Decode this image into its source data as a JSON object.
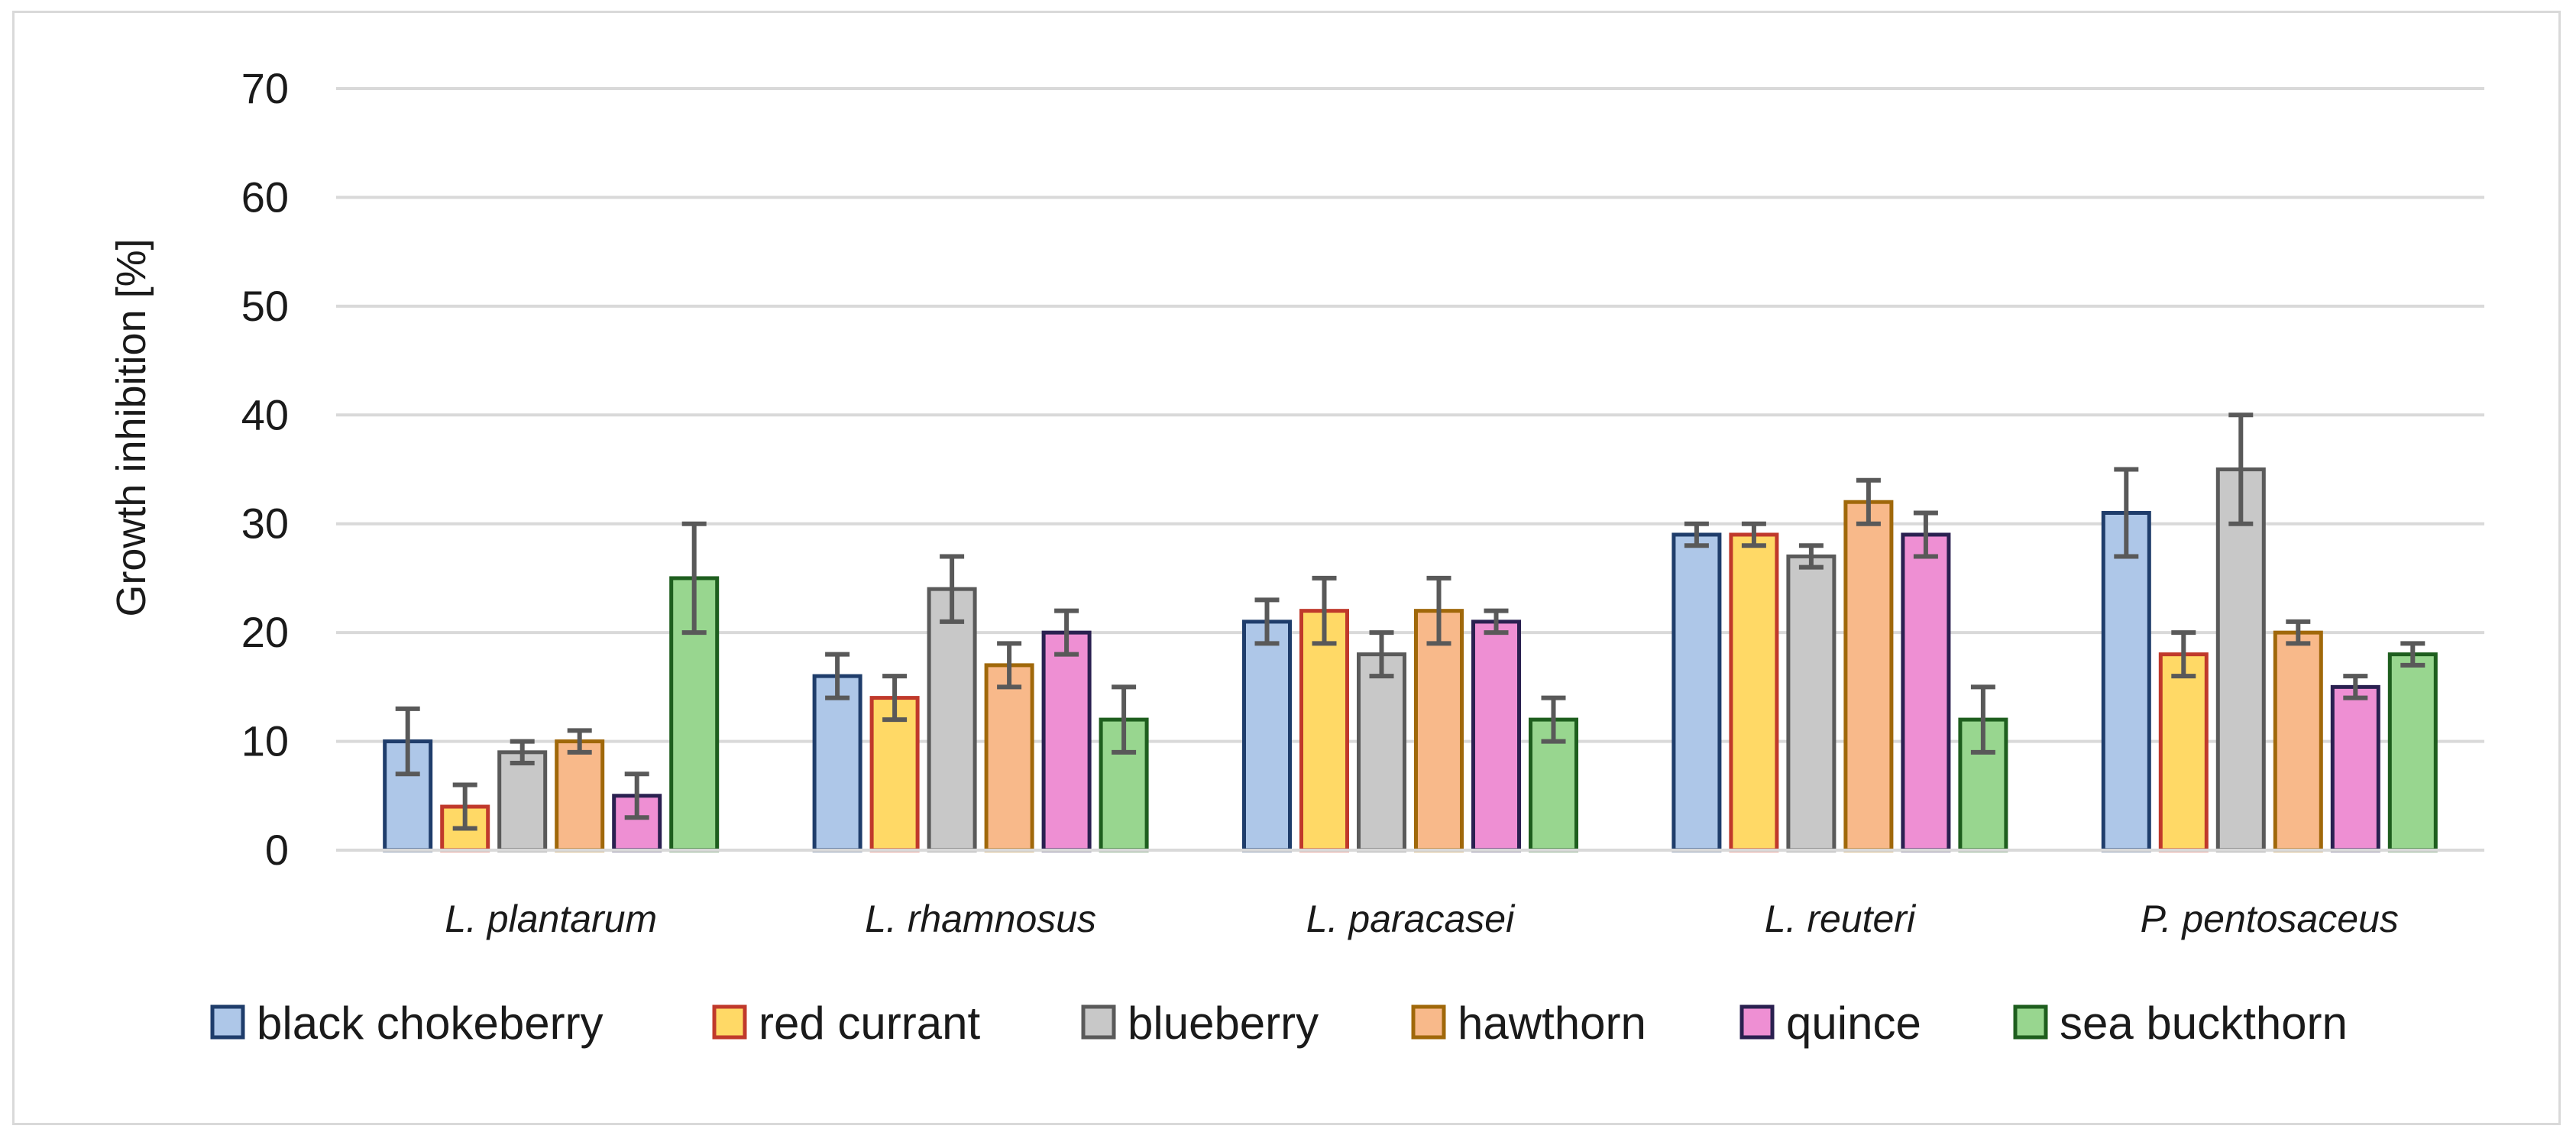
{
  "chart_data": {
    "type": "bar",
    "title": "",
    "xlabel": "",
    "ylabel": "Growth inhibition [%]",
    "ylim": [
      0,
      70
    ],
    "yticks": [
      0,
      10,
      20,
      30,
      40,
      50,
      60,
      70
    ],
    "grid": true,
    "legend_position": "bottom",
    "categories": [
      "L. plantarum",
      "L. rhamnosus",
      "L. paracasei",
      "L. reuteri",
      "P. pentosaceus"
    ],
    "series": [
      {
        "name": "black chokeberry",
        "fill": "#aec7e8",
        "stroke": "#1f3d6b",
        "values": [
          10,
          16,
          21,
          29,
          31
        ],
        "errors": [
          3,
          2,
          2,
          1,
          4
        ]
      },
      {
        "name": "red currant",
        "fill": "#ffd966",
        "stroke": "#c0392b",
        "values": [
          4,
          14,
          22,
          29,
          18
        ],
        "errors": [
          2,
          2,
          3,
          1,
          2
        ]
      },
      {
        "name": "blueberry",
        "fill": "#c8c8c8",
        "stroke": "#5a5a5a",
        "values": [
          9,
          24,
          18,
          27,
          35
        ],
        "errors": [
          1,
          3,
          2,
          1,
          5
        ]
      },
      {
        "name": "hawthorn",
        "fill": "#f8b98a",
        "stroke": "#a0680a",
        "values": [
          10,
          17,
          22,
          32,
          20
        ],
        "errors": [
          1,
          2,
          3,
          2,
          1
        ]
      },
      {
        "name": "quince",
        "fill": "#ee8fd3",
        "stroke": "#2a2050",
        "values": [
          5,
          20,
          21,
          29,
          15
        ],
        "errors": [
          2,
          2,
          1,
          2,
          1
        ]
      },
      {
        "name": "sea buckthorn",
        "fill": "#98d68f",
        "stroke": "#1e5e1e",
        "values": [
          25,
          12,
          12,
          12,
          18
        ],
        "errors": [
          5,
          3,
          2,
          3,
          1
        ]
      }
    ]
  }
}
